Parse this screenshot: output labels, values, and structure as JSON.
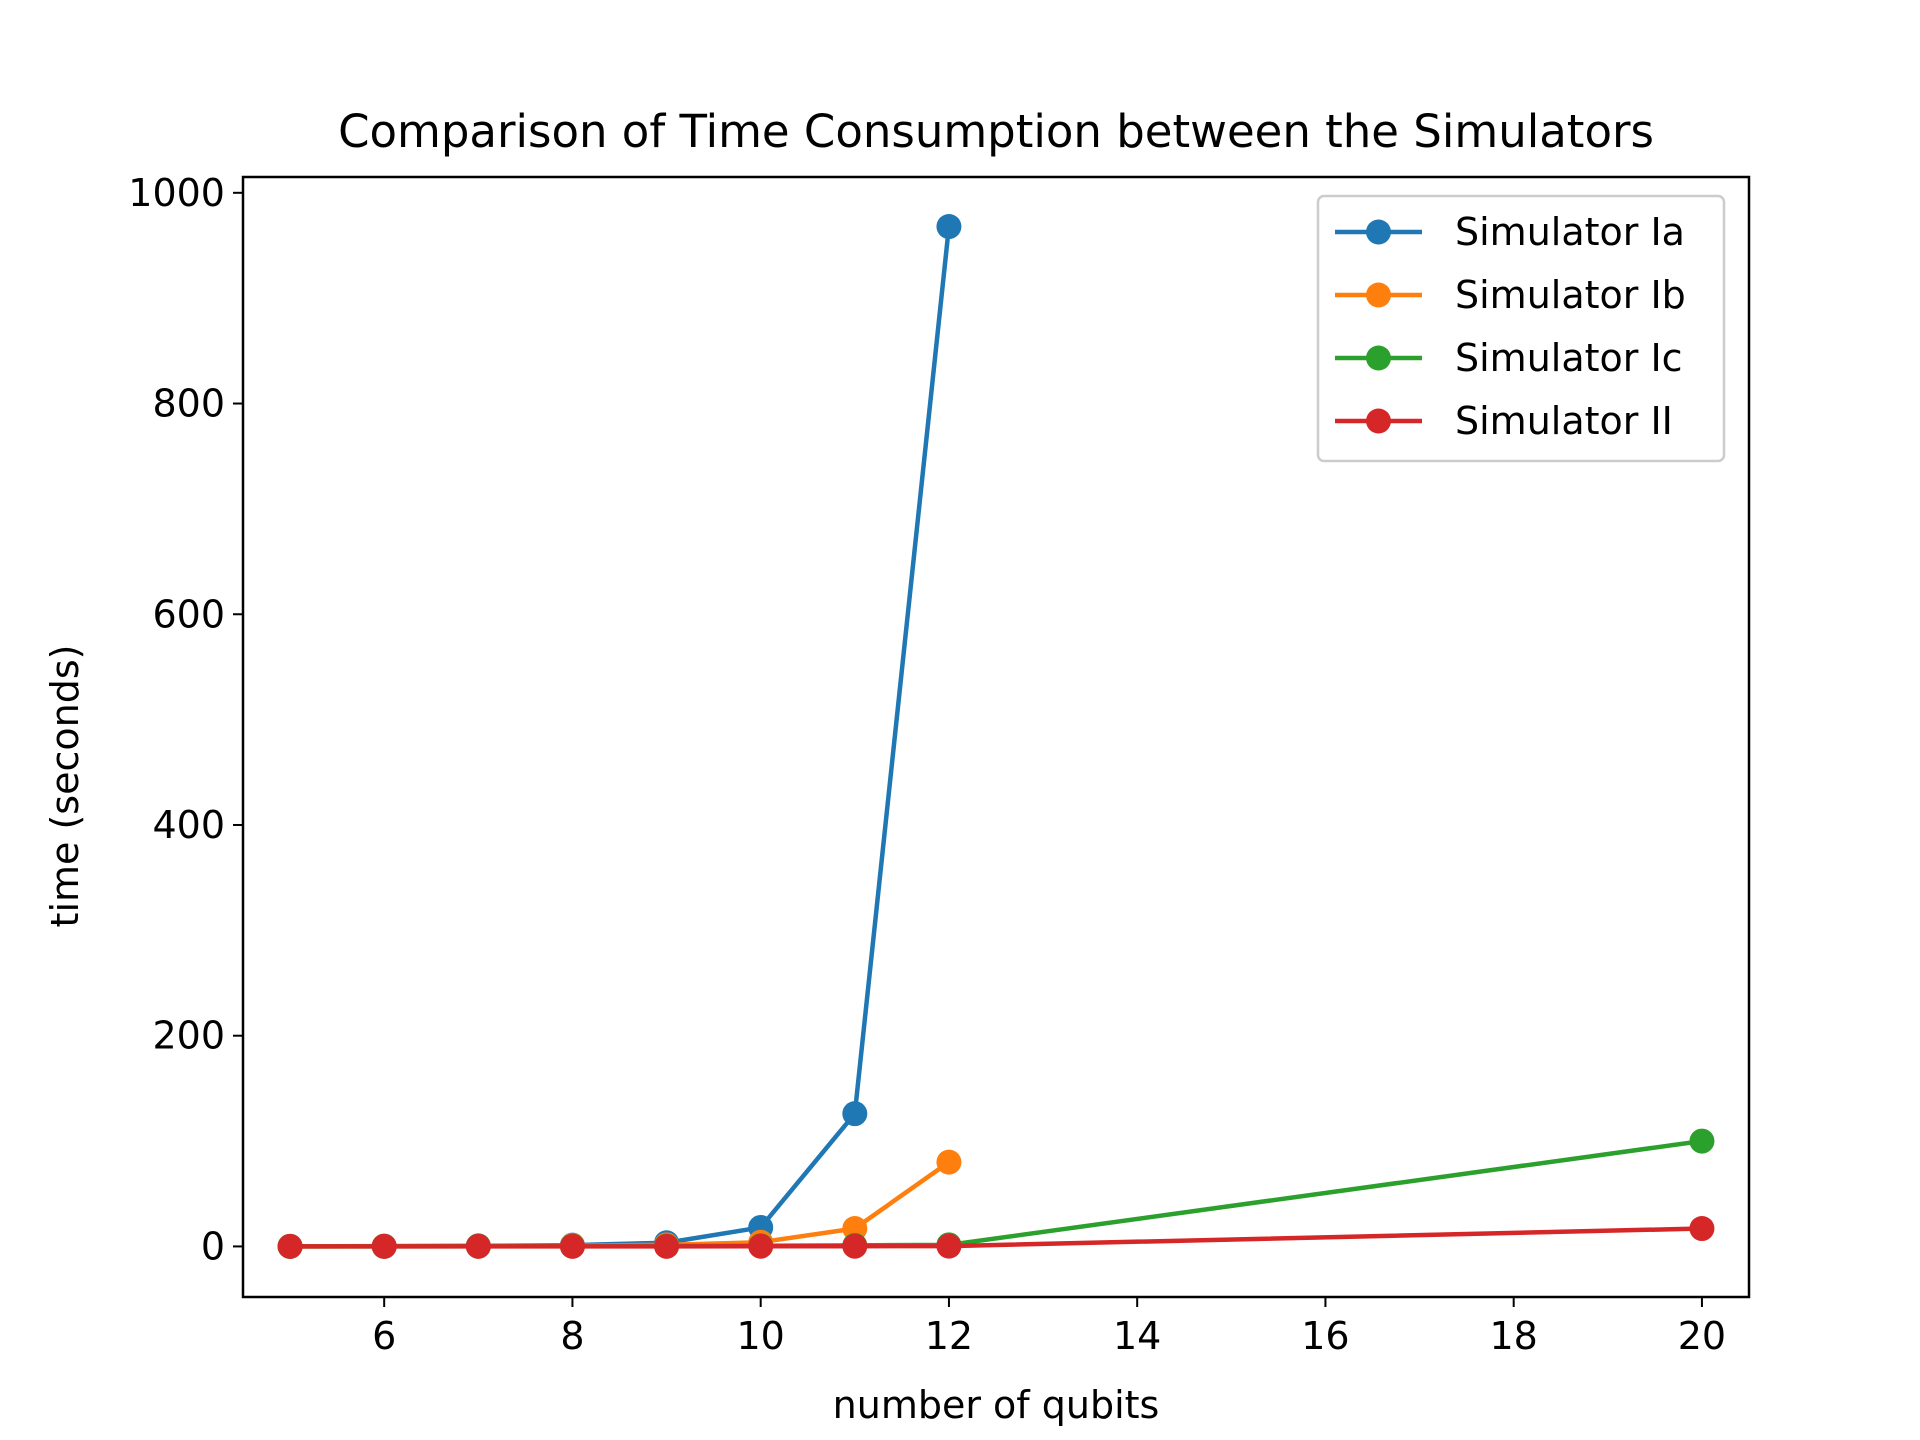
{
  "chart_data": {
    "type": "line",
    "title": "Comparison of Time Consumption between the Simulators",
    "xlabel": "number of qubits",
    "ylabel": "time (seconds)",
    "xlim": [
      4.5,
      20.5
    ],
    "ylim": [
      -48,
      1015
    ],
    "xticks": [
      6,
      8,
      10,
      12,
      14,
      16,
      18,
      20
    ],
    "yticks": [
      0,
      200,
      400,
      600,
      800,
      1000
    ],
    "grid": false,
    "legend_position": "top-right",
    "series": [
      {
        "name": "Simulator Ia",
        "color": "#1f77b4",
        "marker": "circle",
        "x": [
          5,
          6,
          7,
          8,
          9,
          10,
          11,
          12
        ],
        "y": [
          0.1,
          0.3,
          0.6,
          1.2,
          3.5,
          18,
          126,
          968
        ]
      },
      {
        "name": "Simulator Ib",
        "color": "#ff7f0e",
        "marker": "circle",
        "x": [
          5,
          6,
          7,
          8,
          9,
          10,
          11,
          12
        ],
        "y": [
          0.1,
          0.2,
          0.4,
          0.8,
          1.5,
          4,
          17,
          80
        ]
      },
      {
        "name": "Simulator Ic",
        "color": "#2ca02c",
        "marker": "circle",
        "x": [
          5,
          6,
          7,
          8,
          9,
          10,
          11,
          12,
          20
        ],
        "y": [
          0.1,
          0.1,
          0.2,
          0.3,
          0.4,
          0.6,
          1.0,
          1.5,
          100
        ]
      },
      {
        "name": "Simulator II",
        "color": "#d62728",
        "marker": "circle",
        "x": [
          5,
          6,
          7,
          8,
          9,
          10,
          11,
          12,
          20
        ],
        "y": [
          0.05,
          0.05,
          0.1,
          0.1,
          0.1,
          0.2,
          0.2,
          0.3,
          17
        ]
      }
    ]
  }
}
